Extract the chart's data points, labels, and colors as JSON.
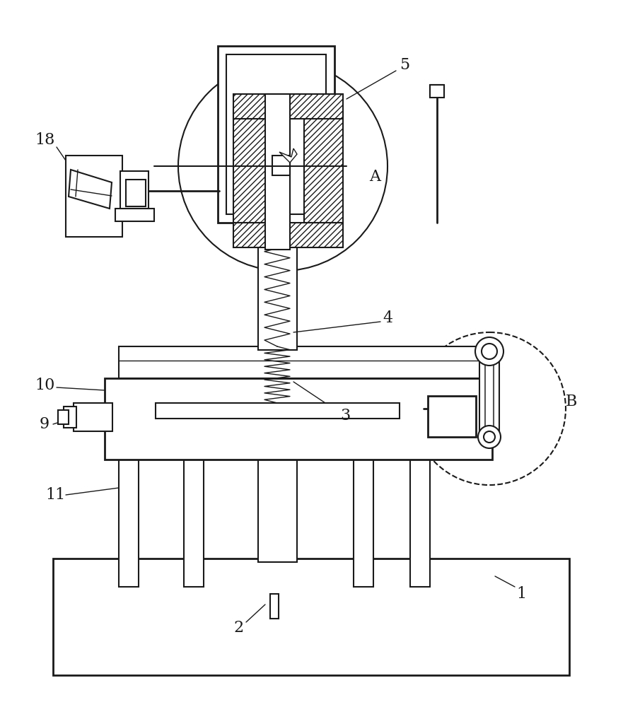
{
  "bg_color": "#ffffff",
  "line_color": "#1a1a1a",
  "lw": 1.5,
  "lw_thin": 1.0,
  "lw_thick": 2.0,
  "fig_width": 8.81,
  "fig_height": 10.0
}
